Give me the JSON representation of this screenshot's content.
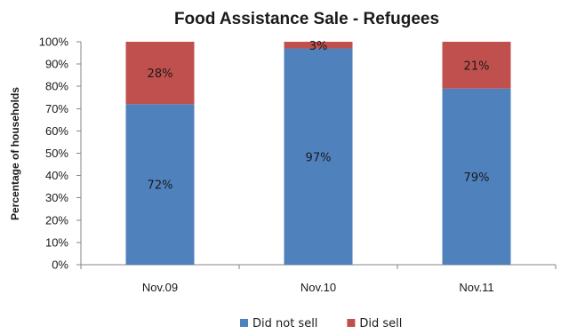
{
  "chart_data": {
    "type": "bar",
    "stacked": true,
    "percent_stacked": true,
    "title": "Food Assistance Sale - Refugees",
    "xlabel": "",
    "ylabel": "Percentage of households",
    "ylim": [
      0,
      100
    ],
    "y_ticks": [
      "0%",
      "10%",
      "20%",
      "30%",
      "40%",
      "50%",
      "60%",
      "70%",
      "80%",
      "90%",
      "100%"
    ],
    "categories": [
      "Nov.09",
      "Nov.10",
      "Nov.11"
    ],
    "series": [
      {
        "name": "Did not sell",
        "values": [
          72,
          97,
          79
        ],
        "labels": [
          "72%",
          "97%",
          "79%"
        ],
        "color": "#4F81BD"
      },
      {
        "name": "Did sell",
        "values": [
          28,
          3,
          21
        ],
        "labels": [
          "28%",
          "3%",
          "21%"
        ],
        "color": "#C0504D"
      }
    ],
    "grid": false,
    "legend": "bottom"
  }
}
